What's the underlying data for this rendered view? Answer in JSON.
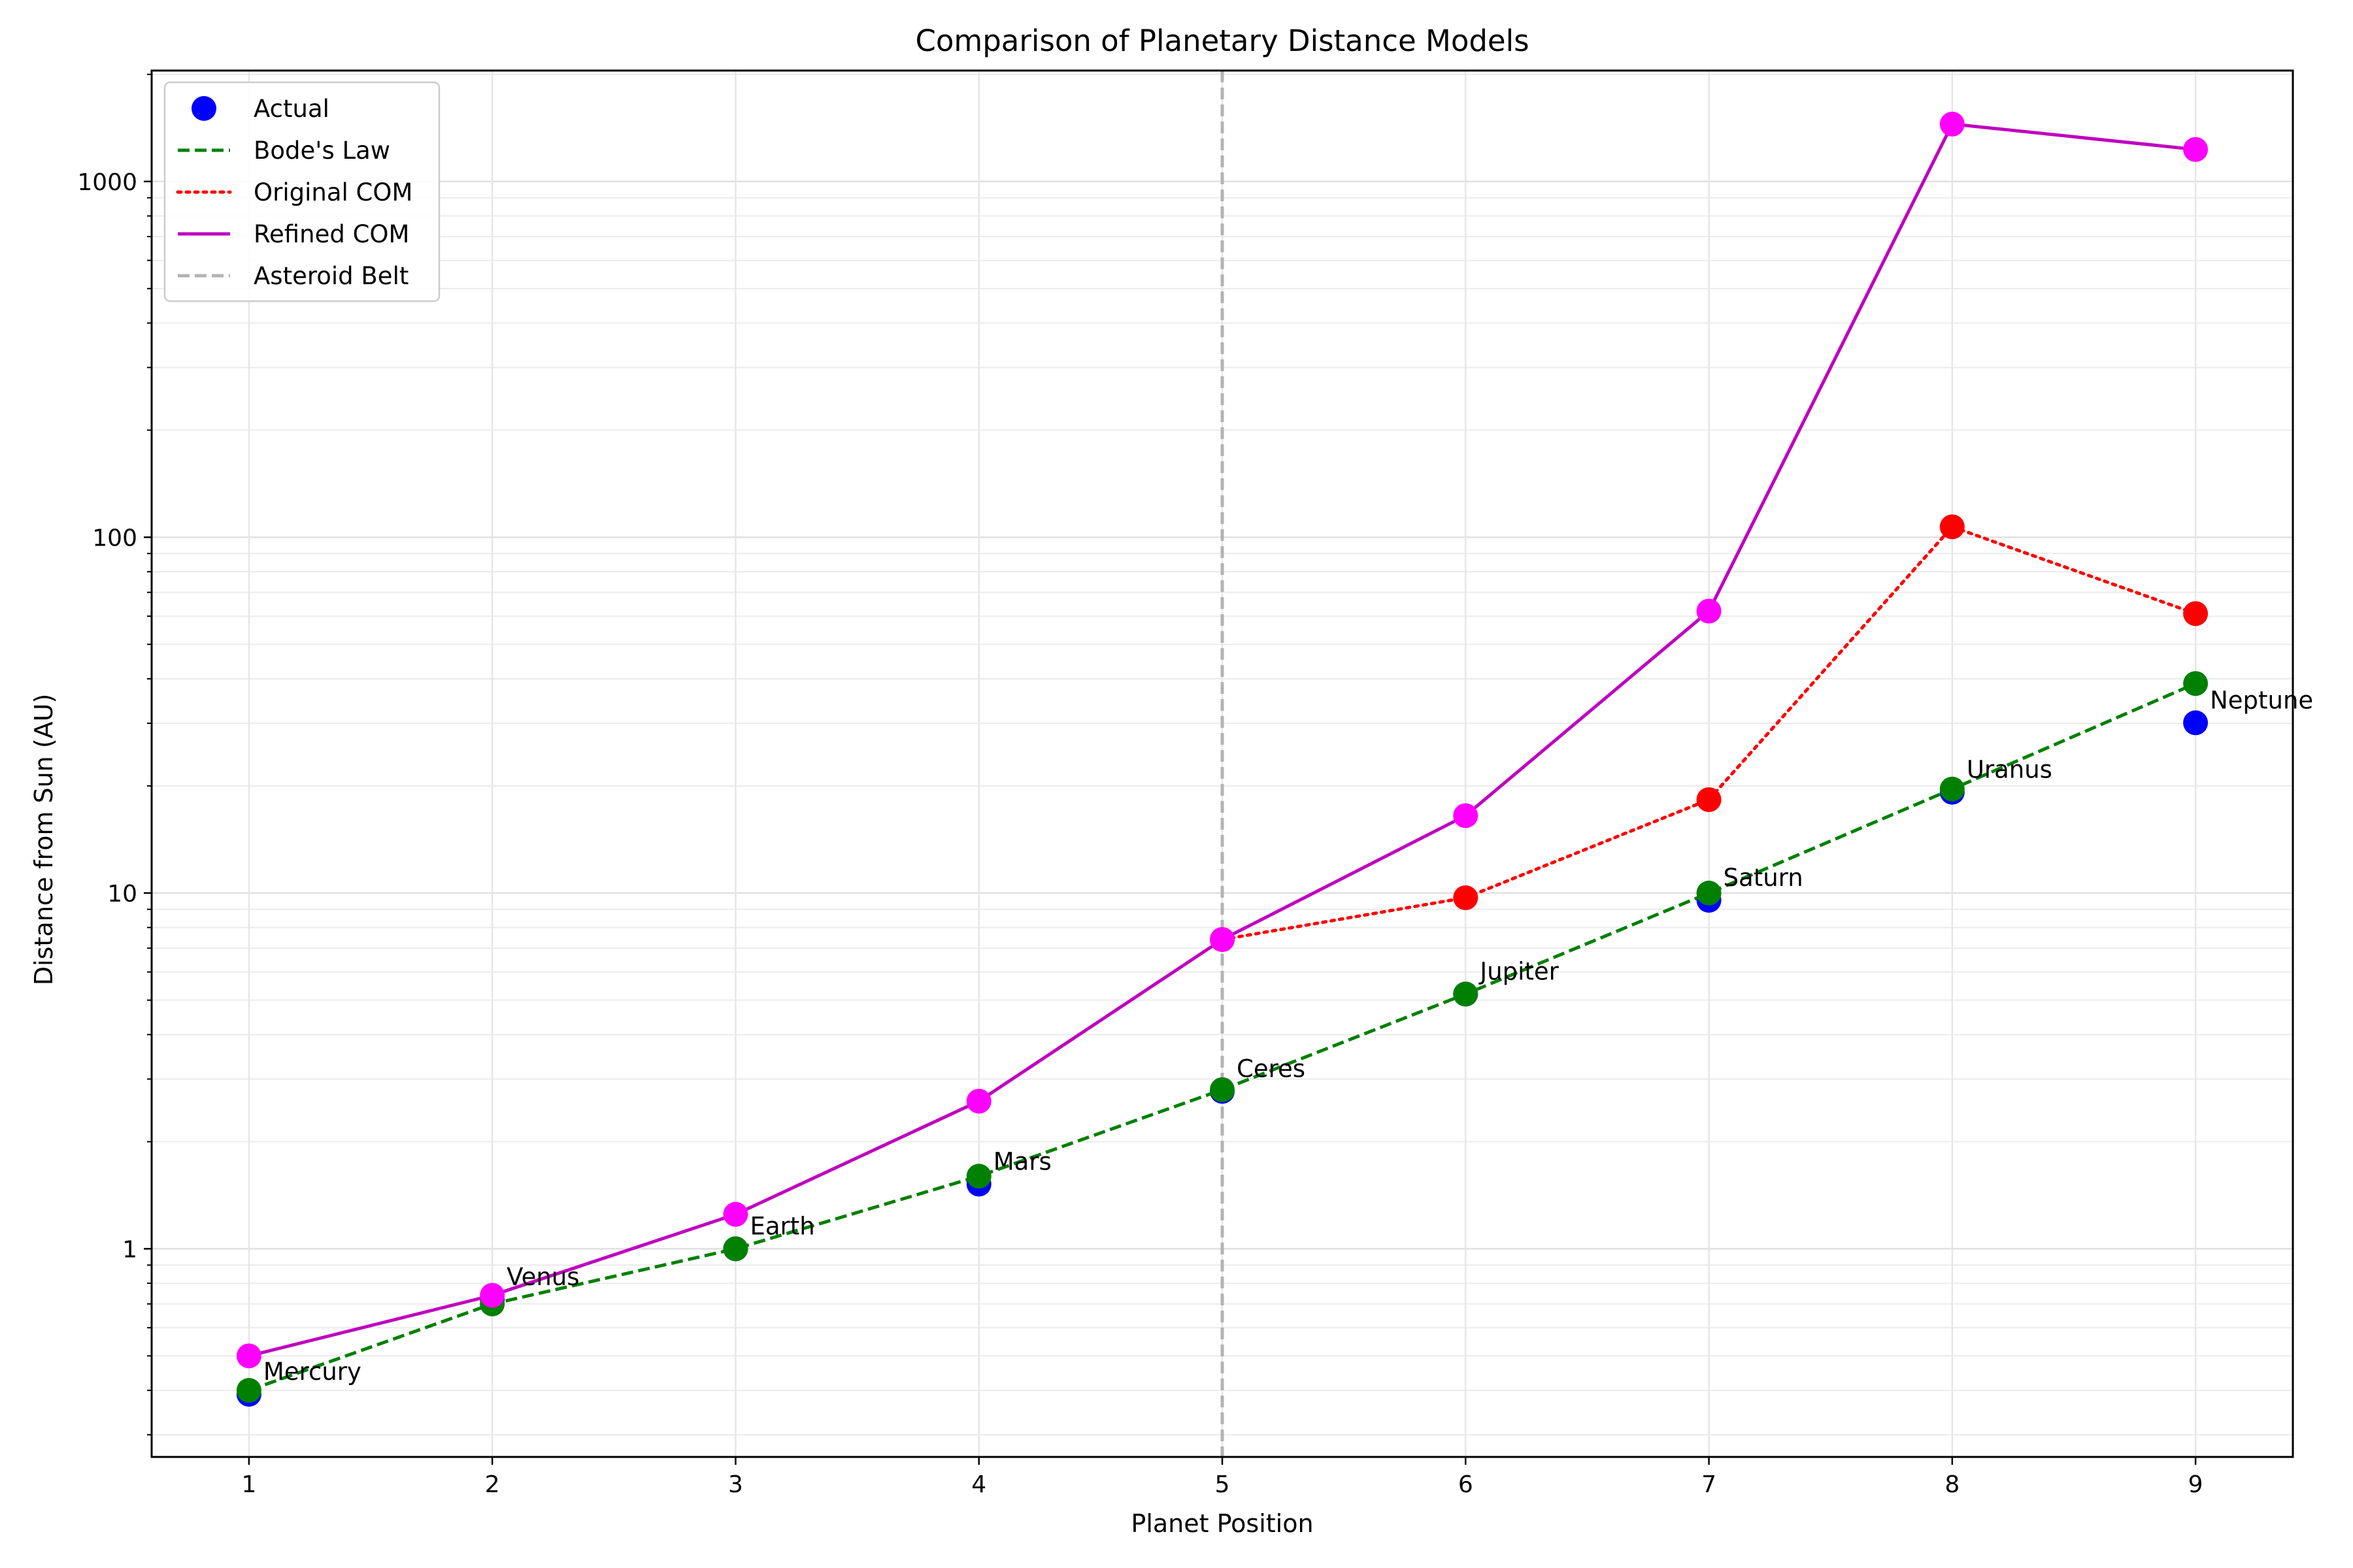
{
  "chart_data": {
    "type": "line",
    "title": "Comparison of Planetary Distance Models",
    "xlabel": "Planet Position",
    "ylabel": "Distance from Sun (AU)",
    "yscale": "log",
    "xlim": [
      0.6,
      9.4
    ],
    "ylim": [
      0.26,
      2050
    ],
    "grid": true,
    "legend_position": "top-left",
    "xticks": [
      1,
      2,
      3,
      4,
      5,
      6,
      7,
      8,
      9
    ],
    "xtick_labels": [
      "1",
      "2",
      "3",
      "4",
      "5",
      "6",
      "7",
      "8",
      "9"
    ],
    "yticks": [
      1,
      10,
      100,
      1000
    ],
    "ytick_labels": [
      "1",
      "10",
      "100",
      "1000"
    ],
    "x": [
      1,
      2,
      3,
      4,
      5,
      6,
      7,
      8,
      9
    ],
    "series": [
      {
        "name": "Actual",
        "kind": "scatter",
        "color": "#0000ff",
        "values": [
          0.39,
          0.72,
          1.0,
          1.52,
          2.77,
          5.2,
          9.54,
          19.2,
          30.1
        ]
      },
      {
        "name": "Bode's Law",
        "kind": "line-markers",
        "style": "dashed",
        "color": "#008000",
        "values": [
          0.4,
          0.7,
          1.0,
          1.6,
          2.8,
          5.2,
          10.0,
          19.6,
          38.8
        ]
      },
      {
        "name": "Original COM",
        "kind": "line-markers",
        "style": "dotted",
        "color": "#ff0000",
        "marker_color": "#ff0000",
        "x": [
          5,
          6,
          7,
          8,
          9
        ],
        "values": [
          7.4,
          9.7,
          18.3,
          107,
          61
        ]
      },
      {
        "name": "Refined COM",
        "kind": "line-markers",
        "style": "solid",
        "color": "#bf00bf",
        "marker_color": "#ff00ff",
        "values": [
          0.5,
          0.74,
          1.25,
          2.6,
          7.4,
          16.5,
          62,
          1450,
          1230
        ]
      }
    ],
    "vline": {
      "name": "Asteroid Belt",
      "x": 5,
      "color": "#b3b3b3",
      "style": "dashed"
    },
    "annotations": [
      {
        "text": "Mercury",
        "x": 1,
        "y": 0.39
      },
      {
        "text": "Venus",
        "x": 2,
        "y": 0.72
      },
      {
        "text": "Earth",
        "x": 3,
        "y": 1.0
      },
      {
        "text": "Mars",
        "x": 4,
        "y": 1.52
      },
      {
        "text": "Ceres",
        "x": 5,
        "y": 2.77
      },
      {
        "text": "Jupiter",
        "x": 6,
        "y": 5.2
      },
      {
        "text": "Saturn",
        "x": 7,
        "y": 9.54
      },
      {
        "text": "Uranus",
        "x": 8,
        "y": 19.2
      },
      {
        "text": "Neptune",
        "x": 9,
        "y": 30.1
      }
    ]
  }
}
